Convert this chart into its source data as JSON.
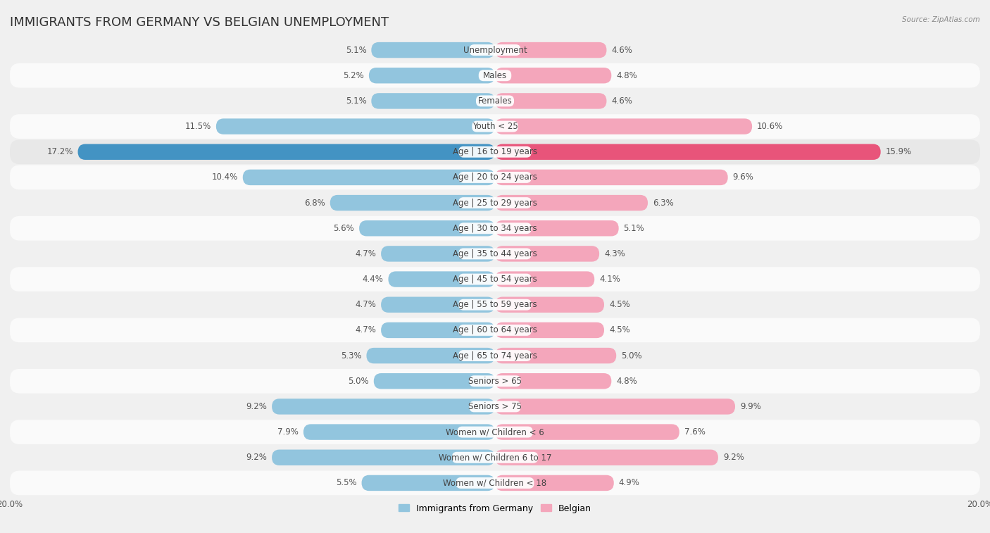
{
  "title": "IMMIGRANTS FROM GERMANY VS BELGIAN UNEMPLOYMENT",
  "source": "Source: ZipAtlas.com",
  "categories": [
    "Unemployment",
    "Males",
    "Females",
    "Youth < 25",
    "Age | 16 to 19 years",
    "Age | 20 to 24 years",
    "Age | 25 to 29 years",
    "Age | 30 to 34 years",
    "Age | 35 to 44 years",
    "Age | 45 to 54 years",
    "Age | 55 to 59 years",
    "Age | 60 to 64 years",
    "Age | 65 to 74 years",
    "Seniors > 65",
    "Seniors > 75",
    "Women w/ Children < 6",
    "Women w/ Children 6 to 17",
    "Women w/ Children < 18"
  ],
  "germany_values": [
    5.1,
    5.2,
    5.1,
    11.5,
    17.2,
    10.4,
    6.8,
    5.6,
    4.7,
    4.4,
    4.7,
    4.7,
    5.3,
    5.0,
    9.2,
    7.9,
    9.2,
    5.5
  ],
  "belgian_values": [
    4.6,
    4.8,
    4.6,
    10.6,
    15.9,
    9.6,
    6.3,
    5.1,
    4.3,
    4.1,
    4.5,
    4.5,
    5.0,
    4.8,
    9.9,
    7.6,
    9.2,
    4.9
  ],
  "germany_color": "#92c5de",
  "belgian_color": "#f4a6bb",
  "germany_highlight_color": "#4393c3",
  "belgian_highlight_color": "#e8547a",
  "highlight_rows": [
    4
  ],
  "row_color_even": "#f0f0f0",
  "row_color_odd": "#fafafa",
  "row_highlight_color": "#e8e8e8",
  "label_bg_color": "#ffffff",
  "background_color": "#f0f0f0",
  "bar_height": 0.62,
  "max_value": 20.0,
  "legend_labels": [
    "Immigrants from Germany",
    "Belgian"
  ],
  "title_fontsize": 13,
  "label_fontsize": 8.5,
  "value_fontsize": 8.5
}
